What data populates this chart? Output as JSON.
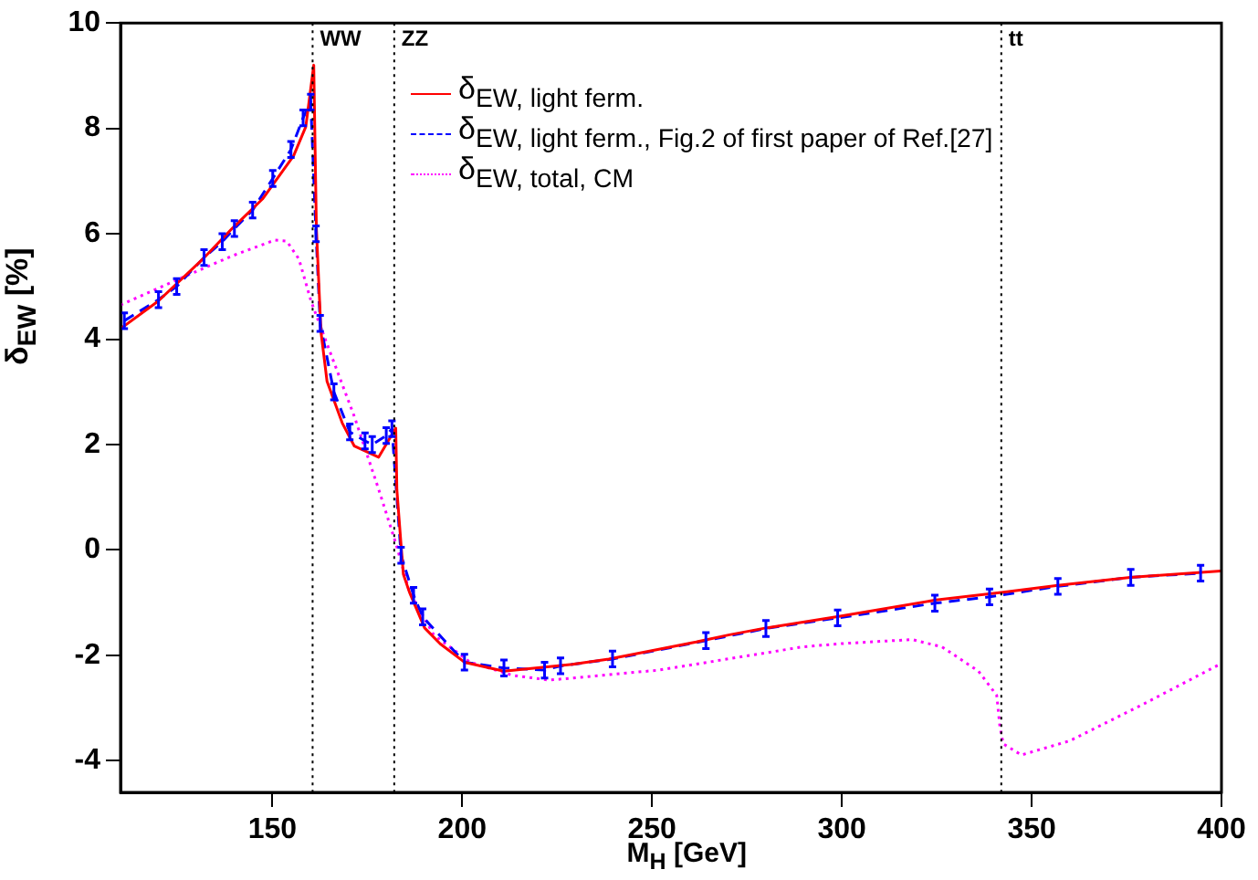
{
  "chart_data": {
    "type": "line",
    "xlabel": "M$_{H}$ [GeV]",
    "ylabel": "δ$_{EW}$ [%]",
    "xlim": [
      110,
      400
    ],
    "xticks": [
      150,
      200,
      250,
      300,
      350,
      400
    ],
    "ylim": [
      -4.6,
      10
    ],
    "yticks": [
      -4,
      -2,
      0,
      2,
      4,
      6,
      8,
      10
    ],
    "grid": false,
    "legend": "top",
    "marker": "none",
    "ref_lines": [
      {
        "axis": "x",
        "value": 160.6,
        "label": "WW",
        "color": "#000000",
        "line_style": "dotted"
      },
      {
        "axis": "x",
        "value": 182.1,
        "label": "ZZ",
        "color": "#000000",
        "line_style": "dotted"
      },
      {
        "axis": "x",
        "value": 342,
        "label": "tt",
        "color": "#000000",
        "line_style": "dotted"
      }
    ],
    "series": [
      {
        "name": "δ$_{EW, light ferm.}$",
        "color": "#ff0000",
        "line_style": "solid",
        "x": [
          110,
          119.9,
          131.4,
          139.4,
          147.4,
          155.6,
          158.8,
          160.9,
          161.6,
          162.8,
          164.4,
          168.4,
          171.6,
          178,
          182.5,
          182.8,
          184,
          184.5,
          186.1,
          190.1,
          194.2,
          200.6,
          211,
          229,
          238.6,
          260.7,
          270.4,
          280,
          299.2,
          324.8,
          342.5,
          356.9,
          376,
          399.8
        ],
        "values": [
          4.2,
          4.72,
          5.5,
          6.1,
          6.66,
          7.48,
          8.03,
          9.2,
          6.1,
          4.14,
          3.2,
          2.41,
          1.97,
          1.76,
          2.31,
          1.14,
          0,
          -0.46,
          -0.8,
          -1.48,
          -1.78,
          -2.13,
          -2.3,
          -2.17,
          -2.07,
          -1.76,
          -1.61,
          -1.48,
          -1.26,
          -0.95,
          -0.8,
          -0.67,
          -0.52,
          -0.4
        ]
      },
      {
        "name": "δ$_{EW, light ferm., Fig.2 of first paper of Ref.[27]}$",
        "color": "#0000ff",
        "line_style": "dashed",
        "x": [
          111,
          120,
          124.8,
          132,
          136.8,
          140,
          144.8,
          150.1,
          154.9,
          158.1,
          160.1,
          161.5,
          162.6,
          166.2,
          170.4,
          174.4,
          176.3,
          180,
          181.5,
          183.9,
          187.2,
          189.6,
          200.6,
          211,
          221.7,
          225.9,
          239.6,
          264.2,
          280,
          298.9,
          324.5,
          338.9,
          356.9,
          376.1,
          394.5
        ],
        "values": [
          4.35,
          4.75,
          5,
          5.55,
          5.85,
          6.1,
          6.45,
          7.05,
          7.6,
          8.2,
          8.5,
          6,
          4.3,
          3,
          2.24,
          2.07,
          2,
          2.17,
          2.3,
          -0.1,
          -0.86,
          -1.27,
          -2.13,
          -2.24,
          -2.28,
          -2.2,
          -2.07,
          -1.72,
          -1.49,
          -1.29,
          -1.01,
          -0.89,
          -0.69,
          -0.52,
          -0.44
        ],
        "errors": [
          0.15,
          0.15,
          0.15,
          0.15,
          0.15,
          0.15,
          0.15,
          0.15,
          0.15,
          0.15,
          0.15,
          0.15,
          0.15,
          0.15,
          0.15,
          0.15,
          0.15,
          0.15,
          0.15,
          0.15,
          0.15,
          0.15,
          0.15,
          0.15,
          0.15,
          0.15,
          0.15,
          0.15,
          0.15,
          0.15,
          0.15,
          0.15,
          0.15,
          0.15,
          0.15
        ]
      },
      {
        "name": "δ$_{EW, total, CM}$",
        "color": "#ff00ff",
        "line_style": "dotted",
        "x": [
          110,
          123.1,
          139.4,
          150.6,
          153.8,
          157,
          160.2,
          164.4,
          171.6,
          178,
          182.8,
          186.1,
          192.5,
          202.1,
          213.3,
          223,
          251.8,
          289.6,
          299.2,
          318.5,
          326.4,
          336,
          340.8,
          341.6,
          342.5,
          347.3,
          360.1,
          379.3,
          399.8
        ],
        "values": [
          4.65,
          5.07,
          5.58,
          5.88,
          5.86,
          5.52,
          4.72,
          3.91,
          2.53,
          1.15,
          0.06,
          -0.8,
          -1.61,
          -2.13,
          -2.38,
          -2.47,
          -2.28,
          -1.84,
          -1.78,
          -1.7,
          -1.84,
          -2.3,
          -2.76,
          -3.33,
          -3.68,
          -3.89,
          -3.62,
          -2.93,
          -2.16
        ]
      }
    ]
  }
}
